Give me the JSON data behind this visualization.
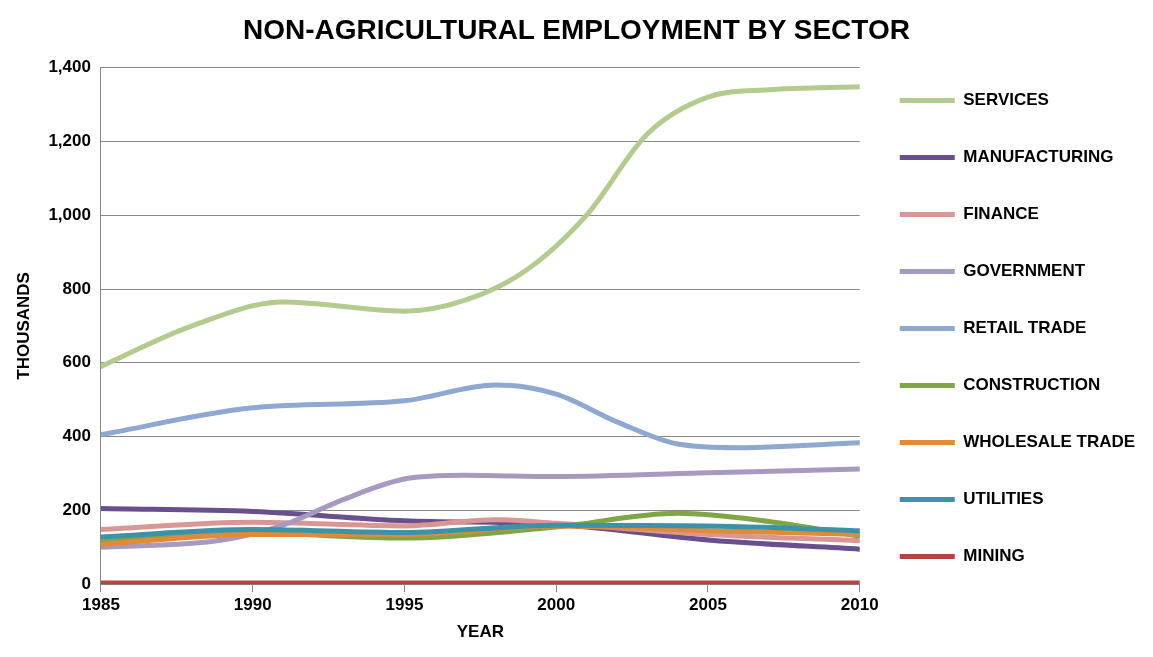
{
  "chart_data": {
    "type": "line",
    "title": "NON-AGRICULTURAL EMPLOYMENT BY SECTOR",
    "xlabel": "YEAR",
    "ylabel": "THOUSANDS",
    "xlim": [
      1985,
      2010
    ],
    "xticks": [
      1985,
      1990,
      1995,
      2000,
      2005,
      2010
    ],
    "ylim": [
      0,
      1400
    ],
    "yticks": [
      0,
      {
        "value": 200,
        "label": "200"
      },
      {
        "value": 400,
        "label": "400"
      },
      {
        "value": 600,
        "label": "600"
      },
      {
        "value": 800,
        "label": "800"
      },
      {
        "value": 1000,
        "label": "1,000"
      },
      {
        "value": 1200,
        "label": "1,200"
      },
      {
        "value": 1400,
        "label": "1,400"
      }
    ],
    "grid": "y",
    "legend": "right",
    "marker": "none",
    "line_style": "solid",
    "series": [
      {
        "name": "SERVICES",
        "color": "#b3cb8e",
        "x": [
          1985,
          1988,
          1991,
          1995,
          1997,
          1999,
          2001,
          2003,
          2005,
          2007,
          2010
        ],
        "values": [
          590,
          700,
          765,
          740,
          770,
          850,
          1000,
          1220,
          1320,
          1340,
          1348
        ]
      },
      {
        "name": "MANUFACTURING",
        "color": "#6a4f8f",
        "x": [
          1985,
          1990,
          1995,
          2000,
          2005,
          2010
        ],
        "values": [
          205,
          197,
          172,
          162,
          120,
          95
        ]
      },
      {
        "name": "FINANCE",
        "color": "#d99694",
        "x": [
          1985,
          1990,
          1995,
          1998,
          2000,
          2005,
          2010
        ],
        "values": [
          148,
          168,
          158,
          175,
          165,
          135,
          118
        ]
      },
      {
        "name": "GOVERNMENT",
        "color": "#a899c0",
        "x": [
          1985,
          1989,
          1991,
          1993,
          1995,
          1997,
          2000,
          2005,
          2010
        ],
        "values": [
          100,
          120,
          160,
          230,
          285,
          295,
          292,
          302,
          312
        ]
      },
      {
        "name": "RETAIL TRADE",
        "color": "#8ea8d2",
        "x": [
          1985,
          1990,
          1995,
          1998,
          2000,
          2002,
          2004,
          2006,
          2010
        ],
        "values": [
          405,
          478,
          497,
          540,
          515,
          440,
          380,
          370,
          383
        ]
      },
      {
        "name": "CONSTRUCTION",
        "color": "#7fa546",
        "x": [
          1985,
          1990,
          1995,
          2000,
          2004,
          2007,
          2010
        ],
        "values": [
          115,
          138,
          125,
          155,
          192,
          170,
          130
        ]
      },
      {
        "name": "WHOLESALE TRADE",
        "color": "#e28a37",
        "x": [
          1985,
          1990,
          1995,
          2000,
          2005,
          2010
        ],
        "values": [
          108,
          135,
          135,
          158,
          145,
          135
        ]
      },
      {
        "name": "UTILITIES",
        "color": "#3c93a8",
        "x": [
          1985,
          1990,
          1995,
          2000,
          2005,
          2010
        ],
        "values": [
          128,
          148,
          140,
          160,
          158,
          145
        ]
      },
      {
        "name": "MINING",
        "color": "#b3443f",
        "x": [
          1985,
          1990,
          1995,
          2000,
          2005,
          2010
        ],
        "values": [
          3,
          3,
          3,
          3,
          3,
          3
        ]
      }
    ]
  }
}
